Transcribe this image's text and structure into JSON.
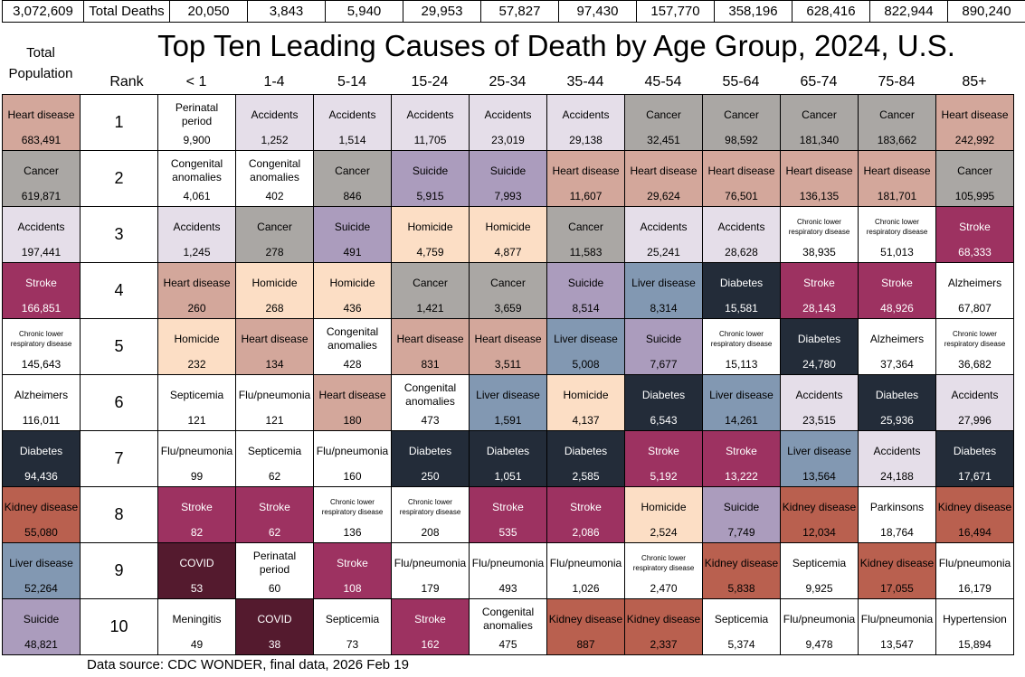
{
  "title": "Top Ten Leading Causes of Death by Age Group, 2024, U.S.",
  "source": "Data source: CDC WONDER, final data, 2026 Feb 19",
  "top_row": {
    "total_population": "3,072,609",
    "label": "Total Deaths",
    "values": [
      "20,050",
      "3,843",
      "5,940",
      "29,953",
      "57,827",
      "97,430",
      "157,770",
      "358,196",
      "628,416",
      "822,944",
      "890,240"
    ]
  },
  "headers": {
    "total_population": "Total Population",
    "rank": "Rank",
    "age_groups": [
      "< 1",
      "1-4",
      "5-14",
      "15-24",
      "25-34",
      "35-44",
      "45-54",
      "55-64",
      "65-74",
      "75-84",
      "85+"
    ]
  },
  "colors": {
    "Heart disease": "#d3a79b",
    "Cancer": "#aaa7a4",
    "Accidents": "#e5dee9",
    "Suicide": "#ab9cbd",
    "Homicide": "#fcdec5",
    "Stroke": "#9d3261",
    "Diabetes": "#232c39",
    "Liver disease": "#8298b2",
    "Kidney disease": "#b9604f",
    "COVID": "#541a2e",
    "default": "#ffffff"
  },
  "dark_causes": [
    "Stroke",
    "Diabetes",
    "COVID"
  ],
  "chart_data": {
    "type": "table",
    "title": "Top Ten Leading Causes of Death by Age Group, 2024, U.S.",
    "ranks": [
      1,
      2,
      3,
      4,
      5,
      6,
      7,
      8,
      9,
      10
    ],
    "total_column": [
      {
        "cause": "Heart disease",
        "count": "683,491"
      },
      {
        "cause": "Cancer",
        "count": "619,871"
      },
      {
        "cause": "Accidents",
        "count": "197,441"
      },
      {
        "cause": "Stroke",
        "count": "166,851"
      },
      {
        "cause": "Chronic lower respiratory disease",
        "count": "145,643"
      },
      {
        "cause": "Alzheimers",
        "count": "116,011"
      },
      {
        "cause": "Diabetes",
        "count": "94,436"
      },
      {
        "cause": "Kidney disease",
        "count": "55,080"
      },
      {
        "cause": "Liver disease",
        "count": "52,264"
      },
      {
        "cause": "Suicide",
        "count": "48,821"
      }
    ],
    "columns": [
      {
        "age": "< 1",
        "cells": [
          {
            "cause": "Perinatal period",
            "count": "9,900"
          },
          {
            "cause": "Congenital anomalies",
            "count": "4,061"
          },
          {
            "cause": "Accidents",
            "count": "1,245"
          },
          {
            "cause": "Heart disease",
            "count": "260"
          },
          {
            "cause": "Homicide",
            "count": "232"
          },
          {
            "cause": "Septicemia",
            "count": "121"
          },
          {
            "cause": "Flu/pneumonia",
            "count": "99"
          },
          {
            "cause": "Stroke",
            "count": "82"
          },
          {
            "cause": "COVID",
            "count": "53"
          },
          {
            "cause": "Meningitis",
            "count": "49"
          }
        ]
      },
      {
        "age": "1-4",
        "cells": [
          {
            "cause": "Accidents",
            "count": "1,252"
          },
          {
            "cause": "Congenital anomalies",
            "count": "402"
          },
          {
            "cause": "Cancer",
            "count": "278"
          },
          {
            "cause": "Homicide",
            "count": "268"
          },
          {
            "cause": "Heart disease",
            "count": "134"
          },
          {
            "cause": "Flu/pneumonia",
            "count": "121"
          },
          {
            "cause": "Septicemia",
            "count": "62"
          },
          {
            "cause": "Stroke",
            "count": "62"
          },
          {
            "cause": "Perinatal period",
            "count": "60"
          },
          {
            "cause": "COVID",
            "count": "38"
          }
        ]
      },
      {
        "age": "5-14",
        "cells": [
          {
            "cause": "Accidents",
            "count": "1,514"
          },
          {
            "cause": "Cancer",
            "count": "846"
          },
          {
            "cause": "Suicide",
            "count": "491"
          },
          {
            "cause": "Homicide",
            "count": "436"
          },
          {
            "cause": "Congenital anomalies",
            "count": "428"
          },
          {
            "cause": "Heart disease",
            "count": "180"
          },
          {
            "cause": "Flu/pneumonia",
            "count": "160"
          },
          {
            "cause": "Chronic lower respiratory disease",
            "count": "136"
          },
          {
            "cause": "Stroke",
            "count": "108"
          },
          {
            "cause": "Septicemia",
            "count": "73"
          }
        ]
      },
      {
        "age": "15-24",
        "cells": [
          {
            "cause": "Accidents",
            "count": "11,705"
          },
          {
            "cause": "Suicide",
            "count": "5,915"
          },
          {
            "cause": "Homicide",
            "count": "4,759"
          },
          {
            "cause": "Cancer",
            "count": "1,421"
          },
          {
            "cause": "Heart disease",
            "count": "831"
          },
          {
            "cause": "Congenital anomalies",
            "count": "473"
          },
          {
            "cause": "Diabetes",
            "count": "250"
          },
          {
            "cause": "Chronic lower respiratory disease",
            "count": "208"
          },
          {
            "cause": "Flu/pneumonia",
            "count": "179"
          },
          {
            "cause": "Stroke",
            "count": "162"
          }
        ]
      },
      {
        "age": "25-34",
        "cells": [
          {
            "cause": "Accidents",
            "count": "23,019"
          },
          {
            "cause": "Suicide",
            "count": "7,993"
          },
          {
            "cause": "Homicide",
            "count": "4,877"
          },
          {
            "cause": "Cancer",
            "count": "3,659"
          },
          {
            "cause": "Heart disease",
            "count": "3,511"
          },
          {
            "cause": "Liver disease",
            "count": "1,591"
          },
          {
            "cause": "Diabetes",
            "count": "1,051"
          },
          {
            "cause": "Stroke",
            "count": "535"
          },
          {
            "cause": "Flu/pneumonia",
            "count": "493"
          },
          {
            "cause": "Congenital anomalies",
            "count": "475"
          }
        ]
      },
      {
        "age": "35-44",
        "cells": [
          {
            "cause": "Accidents",
            "count": "29,138"
          },
          {
            "cause": "Heart disease",
            "count": "11,607"
          },
          {
            "cause": "Cancer",
            "count": "11,583"
          },
          {
            "cause": "Suicide",
            "count": "8,514"
          },
          {
            "cause": "Liver disease",
            "count": "5,008"
          },
          {
            "cause": "Homicide",
            "count": "4,137"
          },
          {
            "cause": "Diabetes",
            "count": "2,585"
          },
          {
            "cause": "Stroke",
            "count": "2,086"
          },
          {
            "cause": "Flu/pneumonia",
            "count": "1,026"
          },
          {
            "cause": "Kidney disease",
            "count": "887"
          }
        ]
      },
      {
        "age": "45-54",
        "cells": [
          {
            "cause": "Cancer",
            "count": "32,451"
          },
          {
            "cause": "Heart disease",
            "count": "29,624"
          },
          {
            "cause": "Accidents",
            "count": "25,241"
          },
          {
            "cause": "Liver disease",
            "count": "8,314"
          },
          {
            "cause": "Suicide",
            "count": "7,677"
          },
          {
            "cause": "Diabetes",
            "count": "6,543"
          },
          {
            "cause": "Stroke",
            "count": "5,192"
          },
          {
            "cause": "Homicide",
            "count": "2,524"
          },
          {
            "cause": "Chronic lower respiratory disease",
            "count": "2,470"
          },
          {
            "cause": "Kidney disease",
            "count": "2,337"
          }
        ]
      },
      {
        "age": "55-64",
        "cells": [
          {
            "cause": "Cancer",
            "count": "98,592"
          },
          {
            "cause": "Heart disease",
            "count": "76,501"
          },
          {
            "cause": "Accidents",
            "count": "28,628"
          },
          {
            "cause": "Diabetes",
            "count": "15,581"
          },
          {
            "cause": "Chronic lower respiratory disease",
            "count": "15,113"
          },
          {
            "cause": "Liver disease",
            "count": "14,261"
          },
          {
            "cause": "Stroke",
            "count": "13,222"
          },
          {
            "cause": "Suicide",
            "count": "7,749"
          },
          {
            "cause": "Kidney disease",
            "count": "5,838"
          },
          {
            "cause": "Septicemia",
            "count": "5,374"
          }
        ]
      },
      {
        "age": "65-74",
        "cells": [
          {
            "cause": "Cancer",
            "count": "181,340"
          },
          {
            "cause": "Heart disease",
            "count": "136,135"
          },
          {
            "cause": "Chronic lower respiratory disease",
            "count": "38,935"
          },
          {
            "cause": "Stroke",
            "count": "28,143"
          },
          {
            "cause": "Diabetes",
            "count": "24,780"
          },
          {
            "cause": "Accidents",
            "count": "23,515"
          },
          {
            "cause": "Liver disease",
            "count": "13,564"
          },
          {
            "cause": "Kidney disease",
            "count": "12,034"
          },
          {
            "cause": "Septicemia",
            "count": "9,925"
          },
          {
            "cause": "Flu/pneumonia",
            "count": "9,478"
          }
        ]
      },
      {
        "age": "75-84",
        "cells": [
          {
            "cause": "Cancer",
            "count": "183,662"
          },
          {
            "cause": "Heart disease",
            "count": "181,701"
          },
          {
            "cause": "Chronic lower respiratory disease",
            "count": "51,013"
          },
          {
            "cause": "Stroke",
            "count": "48,926"
          },
          {
            "cause": "Alzheimers",
            "count": "37,364"
          },
          {
            "cause": "Diabetes",
            "count": "25,936"
          },
          {
            "cause": "Accidents",
            "count": "24,188"
          },
          {
            "cause": "Parkinsons",
            "count": "18,764"
          },
          {
            "cause": "Kidney disease",
            "count": "17,055"
          },
          {
            "cause": "Flu/pneumonia",
            "count": "13,547"
          }
        ]
      },
      {
        "age": "85+",
        "cells": [
          {
            "cause": "Heart disease",
            "count": "242,992"
          },
          {
            "cause": "Cancer",
            "count": "105,995"
          },
          {
            "cause": "Stroke",
            "count": "68,333"
          },
          {
            "cause": "Alzheimers",
            "count": "67,807"
          },
          {
            "cause": "Chronic lower respiratory disease",
            "count": "36,682"
          },
          {
            "cause": "Accidents",
            "count": "27,996"
          },
          {
            "cause": "Diabetes",
            "count": "17,671"
          },
          {
            "cause": "Kidney disease",
            "count": "16,494"
          },
          {
            "cause": "Flu/pneumonia",
            "count": "16,179"
          },
          {
            "cause": "Hypertension",
            "count": "15,894"
          }
        ]
      }
    ]
  }
}
